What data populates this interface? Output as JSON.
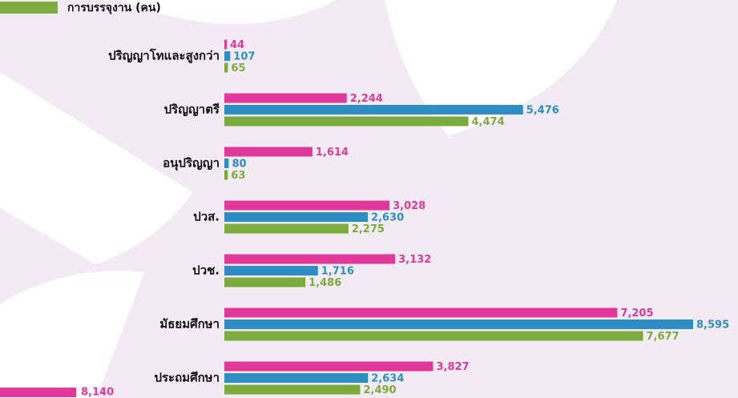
{
  "chart_data": {
    "type": "hbar",
    "categories": [
      "ปริญญาโทและสูงกว่า",
      "ปริญญาตรี",
      "อนุปริญญา",
      "ปวส.",
      "ปวช.",
      "มัธยมศึกษา",
      "ประถมศึกษา"
    ],
    "series": [
      {
        "color": "#e0399a",
        "values": [
          44,
          2244,
          1614,
          3028,
          3132,
          7205,
          3827
        ],
        "value_labels": [
          "44",
          "2,244",
          "1,614",
          "3,028",
          "3,132",
          "7,205",
          "3,827"
        ]
      },
      {
        "color": "#2e8ec4",
        "values": [
          107,
          5476,
          80,
          2630,
          1716,
          8595,
          2634
        ],
        "value_labels": [
          "107",
          "5,476",
          "80",
          "2,630",
          "1,716",
          "8,595",
          "2,634"
        ]
      },
      {
        "name": "การบรรจุงาน (คน)",
        "color": "#7bab3c",
        "values": [
          65,
          4474,
          63,
          2275,
          1486,
          7677,
          2490
        ],
        "value_labels": [
          "65",
          "4,474",
          "63",
          "2,275",
          "1,486",
          "7,677",
          "2,490"
        ]
      }
    ]
  },
  "partial_bar": {
    "color": "#e0399a",
    "value": 8140,
    "value_label": "8,140"
  }
}
